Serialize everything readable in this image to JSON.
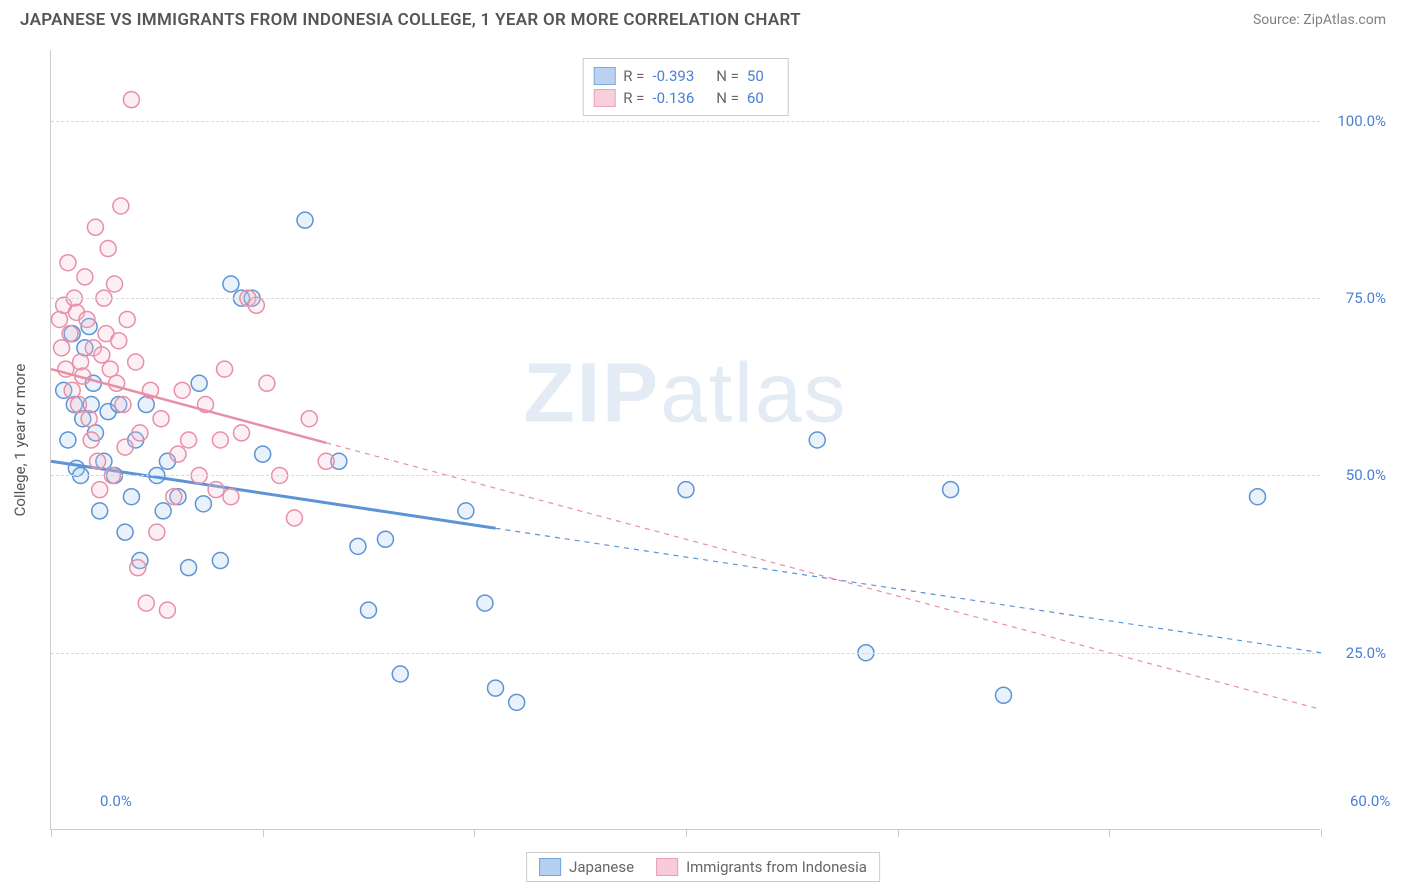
{
  "title": "JAPANESE VS IMMIGRANTS FROM INDONESIA COLLEGE, 1 YEAR OR MORE CORRELATION CHART",
  "source": "Source: ZipAtlas.com",
  "watermark": "ZIPatlas",
  "y_axis_label": "College, 1 year or more",
  "chart": {
    "type": "scatter",
    "background_color": "#ffffff",
    "grid_color": "#d8d8d8",
    "axis_color": "#cccccc",
    "xlim": [
      0,
      60
    ],
    "ylim": [
      0,
      110
    ],
    "y_gridlines": [
      25,
      50,
      75,
      100
    ],
    "y_tick_labels": [
      "25.0%",
      "50.0%",
      "75.0%",
      "100.0%"
    ],
    "x_ticks": [
      0,
      10,
      20,
      30,
      40,
      50,
      60
    ],
    "x_tick_labels": {
      "0": "0.0%",
      "60": "60.0%"
    },
    "marker_radius": 8,
    "marker_stroke_width": 1.5,
    "marker_fill_opacity": 0.25,
    "series": [
      {
        "name": "Japanese",
        "color_stroke": "#5d94d6",
        "color_fill": "#a9c7ed",
        "R": "-0.393",
        "N": "50",
        "trend": {
          "x1": 0,
          "y1": 52,
          "x2": 60,
          "y2": 25,
          "solid_until_x": 21,
          "stroke_width": 3
        },
        "points": [
          [
            0.6,
            62
          ],
          [
            0.8,
            55
          ],
          [
            1.0,
            70
          ],
          [
            1.1,
            60
          ],
          [
            1.2,
            51
          ],
          [
            1.4,
            50
          ],
          [
            1.5,
            58
          ],
          [
            1.6,
            68
          ],
          [
            1.8,
            71
          ],
          [
            1.9,
            60
          ],
          [
            2.0,
            63
          ],
          [
            2.1,
            56
          ],
          [
            2.3,
            45
          ],
          [
            2.5,
            52
          ],
          [
            2.7,
            59
          ],
          [
            3.0,
            50
          ],
          [
            3.2,
            60
          ],
          [
            3.5,
            42
          ],
          [
            3.8,
            47
          ],
          [
            4.0,
            55
          ],
          [
            4.2,
            38
          ],
          [
            4.5,
            60
          ],
          [
            5.0,
            50
          ],
          [
            5.3,
            45
          ],
          [
            5.5,
            52
          ],
          [
            6.0,
            47
          ],
          [
            6.5,
            37
          ],
          [
            7.0,
            63
          ],
          [
            7.2,
            46
          ],
          [
            8.0,
            38
          ],
          [
            8.5,
            77
          ],
          [
            9.0,
            75
          ],
          [
            9.5,
            75
          ],
          [
            10.0,
            53
          ],
          [
            12.0,
            86
          ],
          [
            13.6,
            52
          ],
          [
            14.5,
            40
          ],
          [
            15.0,
            31
          ],
          [
            15.8,
            41
          ],
          [
            16.5,
            22
          ],
          [
            19.6,
            45
          ],
          [
            20.5,
            32
          ],
          [
            21.0,
            20
          ],
          [
            22.0,
            18
          ],
          [
            30.0,
            48
          ],
          [
            36.2,
            55
          ],
          [
            38.5,
            25
          ],
          [
            42.5,
            48
          ],
          [
            45.0,
            19
          ],
          [
            57.0,
            47
          ]
        ]
      },
      {
        "name": "Immigrants from Indonesia",
        "color_stroke": "#e88fa8",
        "color_fill": "#f6c4d2",
        "R": "-0.136",
        "N": "60",
        "trend": {
          "x1": 0,
          "y1": 65,
          "x2": 60,
          "y2": 17,
          "solid_until_x": 13,
          "stroke_width": 2.5
        },
        "points": [
          [
            0.4,
            72
          ],
          [
            0.5,
            68
          ],
          [
            0.6,
            74
          ],
          [
            0.7,
            65
          ],
          [
            0.8,
            80
          ],
          [
            0.9,
            70
          ],
          [
            1.0,
            62
          ],
          [
            1.1,
            75
          ],
          [
            1.2,
            73
          ],
          [
            1.3,
            60
          ],
          [
            1.4,
            66
          ],
          [
            1.5,
            64
          ],
          [
            1.6,
            78
          ],
          [
            1.7,
            72
          ],
          [
            1.8,
            58
          ],
          [
            1.9,
            55
          ],
          [
            2.0,
            68
          ],
          [
            2.1,
            85
          ],
          [
            2.2,
            52
          ],
          [
            2.3,
            48
          ],
          [
            2.4,
            67
          ],
          [
            2.5,
            75
          ],
          [
            2.6,
            70
          ],
          [
            2.7,
            82
          ],
          [
            2.8,
            65
          ],
          [
            2.9,
            50
          ],
          [
            3.0,
            77
          ],
          [
            3.1,
            63
          ],
          [
            3.2,
            69
          ],
          [
            3.3,
            88
          ],
          [
            3.4,
            60
          ],
          [
            3.5,
            54
          ],
          [
            3.6,
            72
          ],
          [
            3.8,
            103
          ],
          [
            4.0,
            66
          ],
          [
            4.1,
            37
          ],
          [
            4.2,
            56
          ],
          [
            4.5,
            32
          ],
          [
            4.7,
            62
          ],
          [
            5.0,
            42
          ],
          [
            5.2,
            58
          ],
          [
            5.5,
            31
          ],
          [
            5.8,
            47
          ],
          [
            6.0,
            53
          ],
          [
            6.2,
            62
          ],
          [
            6.5,
            55
          ],
          [
            7.0,
            50
          ],
          [
            7.3,
            60
          ],
          [
            7.8,
            48
          ],
          [
            8.0,
            55
          ],
          [
            8.2,
            65
          ],
          [
            8.5,
            47
          ],
          [
            9.0,
            56
          ],
          [
            9.3,
            75
          ],
          [
            9.7,
            74
          ],
          [
            10.2,
            63
          ],
          [
            10.8,
            50
          ],
          [
            11.5,
            44
          ],
          [
            12.2,
            58
          ],
          [
            13.0,
            52
          ]
        ]
      }
    ]
  },
  "legend_bottom": {
    "items": [
      "Japanese",
      "Immigrants from Indonesia"
    ]
  }
}
